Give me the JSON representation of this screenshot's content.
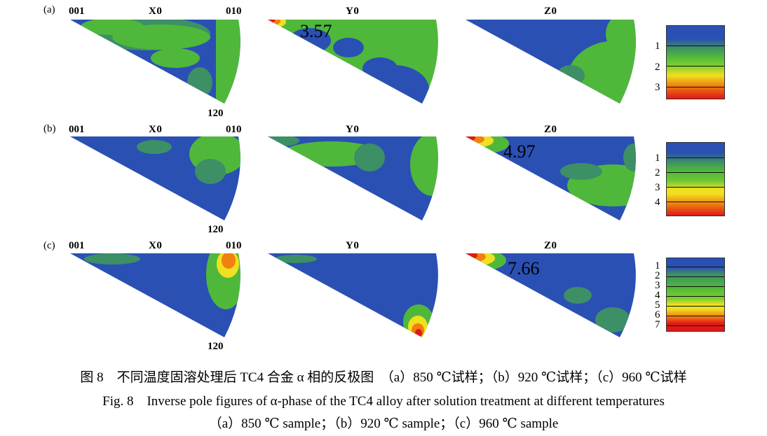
{
  "figure": {
    "rows": [
      {
        "label": "(a)",
        "corner_001": "001",
        "corner_010": "010",
        "corner_120": "120",
        "titles": [
          "X0",
          "Y0",
          "Z0"
        ],
        "max_value": "3.57",
        "max_panel": 1,
        "legend_ticks": [
          "1",
          "2",
          "3"
        ]
      },
      {
        "label": "(b)",
        "corner_001": "001",
        "corner_010": "010",
        "corner_120": "120",
        "titles": [
          "X0",
          "Y0",
          "Z0"
        ],
        "max_value": "4.97",
        "max_panel": 2,
        "legend_ticks": [
          "1",
          "2",
          "3",
          "4"
        ]
      },
      {
        "label": "(c)",
        "corner_001": "001",
        "corner_010": "010",
        "corner_120": "120",
        "titles": [
          "X0",
          "Y0",
          "Z0"
        ],
        "max_value": "7.66",
        "max_panel": 2,
        "legend_ticks": [
          "1",
          "2",
          "3",
          "4",
          "5",
          "6",
          "7"
        ]
      }
    ],
    "colors": {
      "blue": "#2a50b4",
      "green": "#4fb83a",
      "yellow": "#f0e020",
      "orange": "#f08010",
      "red": "#e01818"
    }
  },
  "caption": {
    "cn": "图 8　不同温度固溶处理后 TC4 合金 α 相的反极图　（a）850 ℃试样；（b）920 ℃试样；（c）960 ℃试样",
    "en_line1": "Fig. 8　Inverse pole figures of α-phase of the TC4 alloy after solution treatment at different temperatures",
    "en_line2": "（a）850 ℃ sample；（b）920 ℃ sample；（c）960 ℃ sample"
  }
}
